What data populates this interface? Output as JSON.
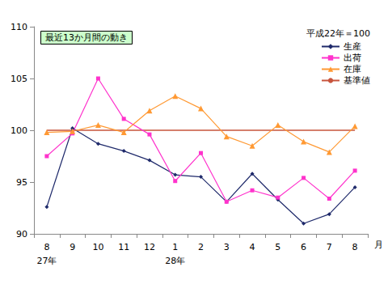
{
  "chart_data": {
    "type": "line",
    "title": "最近13か月間の動き",
    "annotation": "平成22年＝100",
    "x_label": "月",
    "categories": [
      "8",
      "9",
      "10",
      "11",
      "12",
      "1",
      "2",
      "3",
      "4",
      "5",
      "6",
      "7",
      "8"
    ],
    "x_sublabels": [
      "27年",
      null,
      null,
      null,
      null,
      "28年",
      null,
      null,
      null,
      null,
      null,
      null,
      null
    ],
    "series": [
      {
        "name": "生産",
        "color": "#1f2a6b",
        "marker": "diamond",
        "line_style": "solid",
        "values": [
          92.6,
          100.2,
          98.7,
          98.0,
          97.1,
          95.7,
          95.5,
          93.1,
          95.8,
          93.3,
          91.0,
          91.9,
          94.5
        ]
      },
      {
        "name": "出荷",
        "color": "#ff33cc",
        "marker": "square",
        "line_style": "solid",
        "values": [
          97.5,
          99.7,
          105.0,
          101.1,
          99.6,
          95.1,
          97.8,
          93.1,
          94.2,
          93.5,
          95.4,
          93.4,
          96.1
        ]
      },
      {
        "name": "在庫",
        "color": "#ff9933",
        "marker": "triangle",
        "line_style": "solid",
        "values": [
          99.8,
          99.9,
          100.5,
          99.8,
          101.9,
          103.3,
          102.1,
          99.4,
          98.5,
          100.5,
          98.9,
          97.9,
          100.4
        ]
      },
      {
        "name": "基準値",
        "color": "#c8553d",
        "marker": "none",
        "line_style": "solid",
        "values": [
          100,
          100,
          100,
          100,
          100,
          100,
          100,
          100,
          100,
          100,
          100,
          100,
          100
        ]
      }
    ],
    "ylim": [
      90,
      110
    ],
    "yticks": [
      90,
      95,
      100,
      105,
      110
    ],
    "grid": false,
    "legend": "top-right"
  }
}
